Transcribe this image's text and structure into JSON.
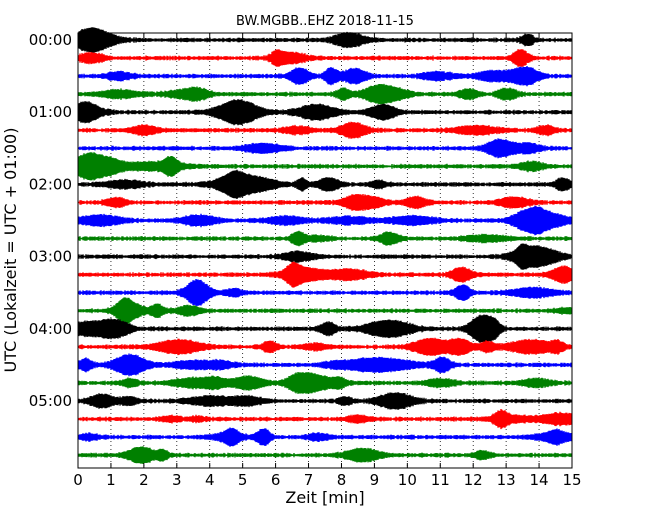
{
  "chart_data": {
    "type": "line",
    "title": "BW.MGBB..EHZ 2018-11-15",
    "xlabel": "Zeit  [min]",
    "ylabel": "UTC (Lokalzeit = UTC + 01:00)",
    "xlim": [
      0,
      15
    ],
    "xticks": [
      "0",
      "1",
      "2",
      "3",
      "4",
      "5",
      "6",
      "7",
      "8",
      "9",
      "10",
      "11",
      "12",
      "13",
      "14",
      "15"
    ],
    "yticks": [
      "00:00",
      "01:00",
      "02:00",
      "03:00",
      "04:00",
      "05:00"
    ],
    "grid": "vertical dotted",
    "trace_interval_min": 15,
    "trace_count": 24,
    "trace_colors": [
      "#000000",
      "#ff0000",
      "#0000ff",
      "#008000"
    ],
    "series": [
      {
        "start": "00:00"
      },
      {
        "start": "00:15"
      },
      {
        "start": "00:30"
      },
      {
        "start": "00:45"
      },
      {
        "start": "01:00"
      },
      {
        "start": "01:15"
      },
      {
        "start": "01:30"
      },
      {
        "start": "01:45"
      },
      {
        "start": "02:00"
      },
      {
        "start": "02:15"
      },
      {
        "start": "02:30"
      },
      {
        "start": "02:45"
      },
      {
        "start": "03:00"
      },
      {
        "start": "03:15"
      },
      {
        "start": "03:30"
      },
      {
        "start": "03:45"
      },
      {
        "start": "04:00"
      },
      {
        "start": "04:15"
      },
      {
        "start": "04:30"
      },
      {
        "start": "04:45"
      },
      {
        "start": "05:00"
      },
      {
        "start": "05:15"
      },
      {
        "start": "05:30"
      },
      {
        "start": "05:45"
      }
    ]
  }
}
